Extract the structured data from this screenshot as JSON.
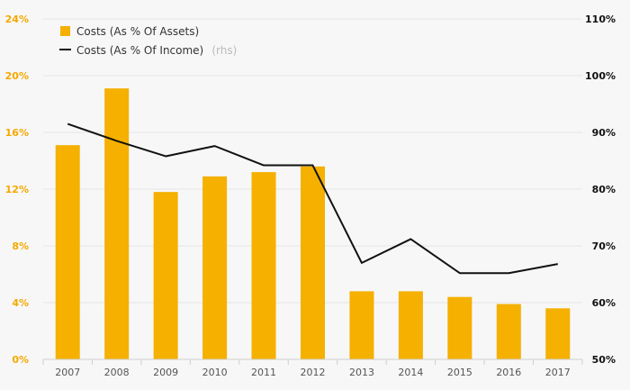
{
  "chart_data": {
    "type": "bar",
    "categories": [
      "2007",
      "2008",
      "2009",
      "2010",
      "2011",
      "2012",
      "2013",
      "2014",
      "2015",
      "2016",
      "2017"
    ],
    "series": [
      {
        "name": "Costs (As % Of Assets)",
        "type": "bar",
        "axis": "left",
        "values": [
          15.1,
          19.1,
          11.8,
          12.9,
          13.2,
          13.6,
          4.8,
          4.8,
          4.4,
          3.9,
          3.6
        ]
      },
      {
        "name": "Costs (As % Of Income)",
        "type": "line",
        "axis": "right",
        "values": [
          91.5,
          88.5,
          85.8,
          87.6,
          84.2,
          84.2,
          67.0,
          71.2,
          65.2,
          65.2,
          66.8
        ]
      }
    ],
    "legend": {
      "bar_label": "Costs (As % Of Assets)",
      "line_label": "Costs (As % Of Income)",
      "line_suffix": "(rhs)",
      "position": "top-left"
    },
    "y_left": {
      "ylim": [
        0,
        24
      ],
      "ticks": [
        "0%",
        "4%",
        "8%",
        "12%",
        "16%",
        "20%",
        "24%"
      ]
    },
    "y_right": {
      "ylim": [
        50,
        110
      ],
      "ticks": [
        "50%",
        "60%",
        "70%",
        "80%",
        "90%",
        "100%",
        "110%"
      ]
    },
    "grid": true,
    "colors": {
      "bar": "#f5b000",
      "line": "#111111",
      "left_axis": "#f5a800",
      "grid": "#e6e6e6",
      "background": "#f7f7f7"
    }
  }
}
